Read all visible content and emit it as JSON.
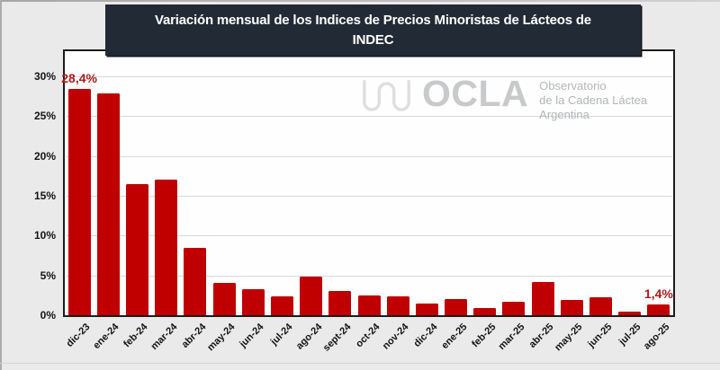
{
  "window": {
    "background": "#eaeaea",
    "plot_background": "#fefefe"
  },
  "title": {
    "line1": "Variación mensual de los Indices de Precios Minoristas de Lácteos de",
    "line2": "INDEC",
    "background": "#222a35",
    "text_color": "#ffffff"
  },
  "watermark": {
    "icon": "milk-drip-squiggle-icon",
    "brand": "OCLA",
    "tagline_line1": "Observatorio",
    "tagline_line2": "de la Cadena Láctea",
    "tagline_line3": "Argentina",
    "brand_color": "#c7c9cb",
    "tagline_color": "#b2b5b8",
    "icon_color": "#dedede"
  },
  "chart_data": {
    "type": "bar",
    "title": "Variación mensual de los Indices de Precios Minoristas de Lácteos de INDEC",
    "categories": [
      "dic-23",
      "ene-24",
      "feb-24",
      "mar-24",
      "abr-24",
      "may-24",
      "jun-24",
      "jul-24",
      "ago-24",
      "sept-24",
      "oct-24",
      "nov-24",
      "dic-24",
      "ene-25",
      "feb-25",
      "mar-25",
      "abr-25",
      "may-25",
      "jun-25",
      "jul-25",
      "ago-25"
    ],
    "values": [
      28.4,
      27.9,
      16.5,
      17.0,
      8.5,
      4.1,
      3.3,
      2.4,
      4.9,
      3.1,
      2.5,
      2.4,
      1.5,
      2.0,
      0.9,
      1.7,
      4.2,
      1.9,
      2.2,
      0.4,
      1.4
    ],
    "xlabel": "",
    "ylabel": "",
    "ylim": [
      0,
      30
    ],
    "y_ticks": [
      "0%",
      "5%",
      "10%",
      "15%",
      "20%",
      "25%",
      "30%"
    ],
    "grid": true,
    "legend": "none",
    "bar_color": "#c00000",
    "gridline_color": "#d9d9d9",
    "data_labels": [
      {
        "index": 0,
        "text": "28,4%"
      },
      {
        "index": 20,
        "text": "1,4%"
      }
    ],
    "data_label_color": "#ae1a1a"
  }
}
